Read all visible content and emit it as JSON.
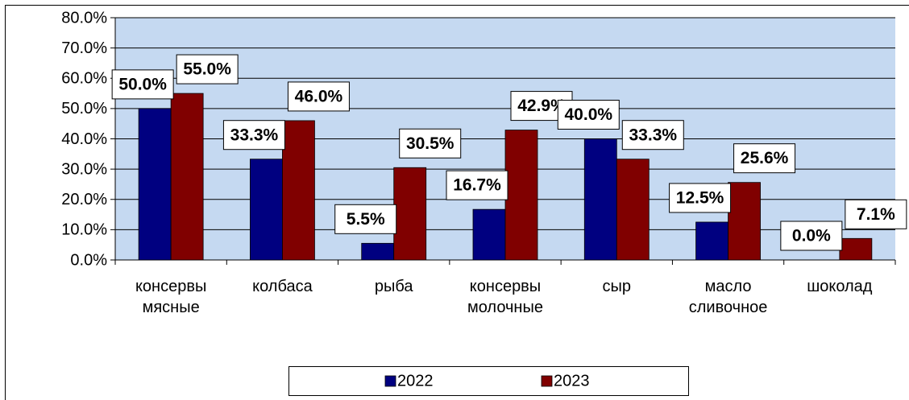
{
  "chart_data": {
    "type": "bar",
    "categories": [
      "консервы мясные",
      "колбаса",
      "рыба",
      "консервы молочные",
      "сыр",
      "масло сливочное",
      "шоколад"
    ],
    "series": [
      {
        "name": "2022",
        "color": "#000080",
        "values": [
          50.0,
          33.3,
          5.5,
          16.7,
          40.0,
          12.5,
          0.0
        ],
        "value_labels": [
          "50.0%",
          "33.3%",
          "5.5%",
          "16.7%",
          "40.0%",
          "12.5%",
          "0.0%"
        ]
      },
      {
        "name": "2023",
        "color": "#800000",
        "values": [
          55.0,
          46.0,
          30.5,
          42.9,
          33.3,
          25.6,
          7.1
        ],
        "value_labels": [
          "55.0%",
          "46.0%",
          "30.5%",
          "42.9%",
          "33.3%",
          "25.6%",
          "7.1%"
        ]
      }
    ],
    "ylim": [
      0,
      80
    ],
    "yticks": [
      {
        "value": 0,
        "label": "0.0%"
      },
      {
        "value": 10,
        "label": "10.0%"
      },
      {
        "value": 20,
        "label": "20.0%"
      },
      {
        "value": 30,
        "label": "30.0%"
      },
      {
        "value": 40,
        "label": "40.0%"
      },
      {
        "value": 50,
        "label": "50.0%"
      },
      {
        "value": 60,
        "label": "60.0%"
      },
      {
        "value": 70,
        "label": "70.0%"
      },
      {
        "value": 80,
        "label": "80.0%"
      }
    ],
    "grid": true,
    "legend": "bottom",
    "plot_background": "#c5d9f1"
  }
}
